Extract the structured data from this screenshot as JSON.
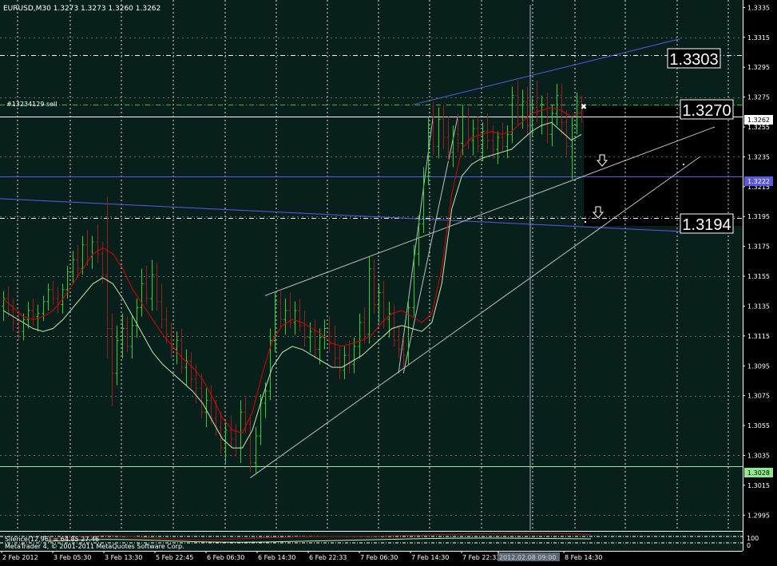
{
  "header": {
    "symbol_line": "EURUSD,M30  1.3273 1.3273 1.3260 1.3262"
  },
  "order_label": "#13234129 sell",
  "price_boxes": {
    "upper": "1.3303",
    "order": "1.3270",
    "lower": "1.3194"
  },
  "axis_tags": {
    "current": "1.3262",
    "blue_line": "1.3222",
    "green_line": "1.3028"
  },
  "indicator": {
    "label": "Silence(12,96) = 64.85 27.46",
    "copyright": "MetaTrader 4, © 2001-2011 MetaQuotes Software Corp.",
    "scale_top": "100",
    "scale_bottom": "0"
  },
  "time_cursor_label": "2012.02.08 09:00",
  "colors": {
    "background": "#000000",
    "plot_bg": "#08201c",
    "bull": "#33cc33",
    "bear": "#9a1d1d",
    "ma_fast": "#e00000",
    "ma_slow": "#c8e8b0",
    "blue_line": "#5a5ae0",
    "green_line": "#90e890",
    "grid": "#ffffff"
  },
  "chart_data": {
    "type": "candlestick",
    "symbol": "EURUSD",
    "timeframe": "M30",
    "ylim": [
      1.2985,
      1.334
    ],
    "y_ticks": [
      "1.3335",
      "1.3315",
      "1.3295",
      "1.3275",
      "1.3255",
      "1.3235",
      "1.3215",
      "1.3195",
      "1.3175",
      "1.3155",
      "1.3135",
      "1.3115",
      "1.3095",
      "1.3075",
      "1.3055",
      "1.3035",
      "1.3015",
      "1.2995"
    ],
    "x_ticks": [
      "2 Feb 2012",
      "3 Feb 05:30",
      "3 Feb 13:30",
      "5 Feb 22:45",
      "6 Feb 06:30",
      "6 Feb 14:30",
      "6 Feb 22:33",
      "7 Feb 06:30",
      "7 Feb 14:30",
      "7 Feb 22:33",
      "2012.02.08 09:00",
      "8 Feb 14:30"
    ],
    "horizontal_levels": [
      {
        "price": 1.3303,
        "style": "dash-dot",
        "color": "white"
      },
      {
        "price": 1.327,
        "style": "dash-dot",
        "color": "green",
        "label": "#13234129 sell"
      },
      {
        "price": 1.3262,
        "style": "solid",
        "color": "white"
      },
      {
        "price": 1.3222,
        "style": "solid",
        "color": "blue"
      },
      {
        "price": 1.3194,
        "style": "dash-dot",
        "color": "white"
      },
      {
        "price": 1.3028,
        "style": "solid",
        "color": "green"
      }
    ],
    "candles": [
      [
        1.3135,
        1.3145,
        1.3125,
        1.314
      ],
      [
        1.314,
        1.3148,
        1.3128,
        1.3132
      ],
      [
        1.3132,
        1.314,
        1.3118,
        1.3124
      ],
      [
        1.3124,
        1.3132,
        1.3112,
        1.3118
      ],
      [
        1.3118,
        1.313,
        1.3112,
        1.3126
      ],
      [
        1.3126,
        1.3138,
        1.312,
        1.3132
      ],
      [
        1.3132,
        1.314,
        1.3122,
        1.3128
      ],
      [
        1.3128,
        1.3136,
        1.3118,
        1.313
      ],
      [
        1.313,
        1.3142,
        1.3125,
        1.3138
      ],
      [
        1.3138,
        1.315,
        1.3132,
        1.3146
      ],
      [
        1.3146,
        1.3152,
        1.3136,
        1.314
      ],
      [
        1.314,
        1.3148,
        1.313,
        1.3136
      ],
      [
        1.3136,
        1.315,
        1.313,
        1.3146
      ],
      [
        1.3146,
        1.3162,
        1.314,
        1.3158
      ],
      [
        1.3158,
        1.3172,
        1.315,
        1.3166
      ],
      [
        1.3166,
        1.3176,
        1.3154,
        1.316
      ],
      [
        1.316,
        1.3182,
        1.3156,
        1.3176
      ],
      [
        1.3176,
        1.3186,
        1.3162,
        1.3168
      ],
      [
        1.3168,
        1.3182,
        1.316,
        1.3178
      ],
      [
        1.3178,
        1.319,
        1.3164,
        1.317
      ],
      [
        1.317,
        1.3178,
        1.315,
        1.3156
      ],
      [
        1.3156,
        1.3208,
        1.31,
        1.312
      ],
      [
        1.312,
        1.313,
        1.3068,
        1.309
      ],
      [
        1.309,
        1.3122,
        1.3082,
        1.3112
      ],
      [
        1.3112,
        1.313,
        1.31,
        1.312
      ],
      [
        1.312,
        1.3128,
        1.3104,
        1.3108
      ],
      [
        1.3108,
        1.3128,
        1.31,
        1.3122
      ],
      [
        1.3122,
        1.314,
        1.3114,
        1.3134
      ],
      [
        1.3134,
        1.316,
        1.3128,
        1.315
      ],
      [
        1.315,
        1.3162,
        1.3136,
        1.314
      ],
      [
        1.314,
        1.3166,
        1.3132,
        1.3156
      ],
      [
        1.3156,
        1.3164,
        1.3132,
        1.3138
      ],
      [
        1.3138,
        1.315,
        1.312,
        1.3126
      ],
      [
        1.3126,
        1.3134,
        1.311,
        1.3116
      ],
      [
        1.3116,
        1.3124,
        1.31,
        1.3106
      ],
      [
        1.3106,
        1.3118,
        1.3096,
        1.3112
      ],
      [
        1.3112,
        1.312,
        1.309,
        1.3094
      ],
      [
        1.3094,
        1.3106,
        1.3082,
        1.3098
      ],
      [
        1.3098,
        1.3104,
        1.308,
        1.3086
      ],
      [
        1.3086,
        1.3096,
        1.307,
        1.308
      ],
      [
        1.308,
        1.309,
        1.306,
        1.3064
      ],
      [
        1.3064,
        1.308,
        1.3054,
        1.3072
      ],
      [
        1.3072,
        1.3082,
        1.3056,
        1.306
      ],
      [
        1.306,
        1.3072,
        1.3048,
        1.3054
      ],
      [
        1.3054,
        1.3064,
        1.3036,
        1.304
      ],
      [
        1.304,
        1.3058,
        1.303,
        1.3052
      ],
      [
        1.3052,
        1.3062,
        1.304,
        1.3046
      ],
      [
        1.3046,
        1.3056,
        1.3034,
        1.304
      ],
      [
        1.304,
        1.3072,
        1.303,
        1.3064
      ],
      [
        1.3064,
        1.3074,
        1.305,
        1.3056
      ],
      [
        1.3056,
        1.3062,
        1.3024,
        1.303
      ],
      [
        1.303,
        1.3054,
        1.3022,
        1.3048
      ],
      [
        1.3048,
        1.3076,
        1.3042,
        1.307
      ],
      [
        1.307,
        1.3084,
        1.306,
        1.3078
      ],
      [
        1.3078,
        1.312,
        1.3072,
        1.3112
      ],
      [
        1.3112,
        1.3144,
        1.3104,
        1.3138
      ],
      [
        1.3138,
        1.3146,
        1.312,
        1.3126
      ],
      [
        1.3126,
        1.314,
        1.3116,
        1.3132
      ],
      [
        1.3132,
        1.3144,
        1.312,
        1.3124
      ],
      [
        1.3124,
        1.3138,
        1.3116,
        1.3132
      ],
      [
        1.3132,
        1.314,
        1.3118,
        1.3122
      ],
      [
        1.3122,
        1.3132,
        1.3108,
        1.3114
      ],
      [
        1.3114,
        1.3124,
        1.3104,
        1.3118
      ],
      [
        1.3118,
        1.3126,
        1.31,
        1.3106
      ],
      [
        1.3106,
        1.312,
        1.3096,
        1.3114
      ],
      [
        1.3114,
        1.3126,
        1.3106,
        1.312
      ],
      [
        1.312,
        1.3128,
        1.3104,
        1.311
      ],
      [
        1.311,
        1.3122,
        1.3094,
        1.31
      ],
      [
        1.31,
        1.3108,
        1.3086,
        1.3092
      ],
      [
        1.3092,
        1.3108,
        1.3086,
        1.3102
      ],
      [
        1.3102,
        1.3112,
        1.309,
        1.3096
      ],
      [
        1.3096,
        1.3114,
        1.309,
        1.3108
      ],
      [
        1.3108,
        1.313,
        1.31,
        1.3124
      ],
      [
        1.3124,
        1.3134,
        1.311,
        1.3116
      ],
      [
        1.3116,
        1.3168,
        1.311,
        1.316
      ],
      [
        1.316,
        1.3166,
        1.313,
        1.3136
      ],
      [
        1.3136,
        1.315,
        1.3124,
        1.3144
      ],
      [
        1.3144,
        1.3152,
        1.312,
        1.3126
      ],
      [
        1.3126,
        1.3138,
        1.3114,
        1.313
      ],
      [
        1.313,
        1.3136,
        1.3108,
        1.3112
      ],
      [
        1.3112,
        1.3122,
        1.31,
        1.3106
      ],
      [
        1.3106,
        1.3114,
        1.3094,
        1.3102
      ],
      [
        1.3102,
        1.314,
        1.3096,
        1.3134
      ],
      [
        1.3134,
        1.3176,
        1.3128,
        1.317
      ],
      [
        1.317,
        1.3196,
        1.3162,
        1.319
      ],
      [
        1.319,
        1.3228,
        1.3184,
        1.3222
      ],
      [
        1.3222,
        1.3262,
        1.3216,
        1.3256
      ],
      [
        1.3256,
        1.3272,
        1.3236,
        1.3242
      ],
      [
        1.3242,
        1.3268,
        1.3234,
        1.326
      ],
      [
        1.326,
        1.327,
        1.324,
        1.3248
      ],
      [
        1.3248,
        1.3262,
        1.3232,
        1.3238
      ],
      [
        1.3238,
        1.3256,
        1.3228,
        1.325
      ],
      [
        1.325,
        1.3264,
        1.3238,
        1.3244
      ],
      [
        1.3244,
        1.327,
        1.3236,
        1.3262
      ],
      [
        1.3262,
        1.3268,
        1.324,
        1.3246
      ],
      [
        1.3246,
        1.326,
        1.3236,
        1.3254
      ],
      [
        1.3254,
        1.3262,
        1.3238,
        1.3242
      ],
      [
        1.3242,
        1.3258,
        1.3232,
        1.3252
      ],
      [
        1.3252,
        1.3264,
        1.324,
        1.3246
      ],
      [
        1.3246,
        1.3256,
        1.3234,
        1.324
      ],
      [
        1.324,
        1.3252,
        1.323,
        1.3248
      ],
      [
        1.3248,
        1.3258,
        1.3238,
        1.3242
      ],
      [
        1.3242,
        1.3256,
        1.3234,
        1.325
      ],
      [
        1.325,
        1.3282,
        1.3244,
        1.3276
      ],
      [
        1.3276,
        1.3286,
        1.3256,
        1.3262
      ],
      [
        1.3262,
        1.328,
        1.3254,
        1.3272
      ],
      [
        1.3272,
        1.3282,
        1.325,
        1.3256
      ],
      [
        1.3256,
        1.3274,
        1.3248,
        1.3268
      ],
      [
        1.3268,
        1.3286,
        1.3258,
        1.3262
      ],
      [
        1.3262,
        1.3276,
        1.325,
        1.327
      ],
      [
        1.327,
        1.3278,
        1.3244,
        1.325
      ],
      [
        1.325,
        1.327,
        1.3242,
        1.3264
      ],
      [
        1.3264,
        1.3284,
        1.3256,
        1.3276
      ],
      [
        1.3276,
        1.3284,
        1.325,
        1.3258
      ],
      [
        1.3258,
        1.3266,
        1.3236,
        1.3242
      ],
      [
        1.3242,
        1.3262,
        1.322,
        1.3256
      ],
      [
        1.3256,
        1.3278,
        1.325,
        1.3272
      ],
      [
        1.3272,
        1.3276,
        1.3258,
        1.3262
      ]
    ],
    "ma_fast": [
      1.314,
      1.3134,
      1.3128,
      1.3126,
      1.3128,
      1.3132,
      1.314,
      1.315,
      1.316,
      1.317,
      1.3174,
      1.317,
      1.316,
      1.3146,
      1.3136,
      1.3126,
      1.3116,
      1.3108,
      1.31,
      1.3094,
      1.3086,
      1.3074,
      1.306,
      1.3052,
      1.305,
      1.3064,
      1.309,
      1.3112,
      1.3122,
      1.3126,
      1.3124,
      1.312,
      1.3116,
      1.311,
      1.3108,
      1.311,
      1.3112,
      1.3116,
      1.3124,
      1.313,
      1.3132,
      1.3128,
      1.3124,
      1.313,
      1.316,
      1.321,
      1.324,
      1.3248,
      1.325,
      1.3252,
      1.325,
      1.3252,
      1.3258,
      1.3264,
      1.3266,
      1.3268,
      1.3266,
      1.3262,
      1.3265
    ],
    "ma_slow": [
      1.3132,
      1.3128,
      1.3124,
      1.312,
      1.3118,
      1.312,
      1.3126,
      1.3134,
      1.3142,
      1.315,
      1.3154,
      1.315,
      1.314,
      1.3128,
      1.3116,
      1.3104,
      1.3096,
      1.309,
      1.3084,
      1.3078,
      1.307,
      1.3058,
      1.3046,
      1.304,
      1.304,
      1.3052,
      1.3074,
      1.3094,
      1.3104,
      1.3108,
      1.3106,
      1.3102,
      1.3098,
      1.3094,
      1.3094,
      1.3098,
      1.3102,
      1.3108,
      1.3114,
      1.312,
      1.3122,
      1.312,
      1.3118,
      1.3124,
      1.315,
      1.32,
      1.3222,
      1.323,
      1.3234,
      1.3236,
      1.3238,
      1.324,
      1.3246,
      1.3252,
      1.3256,
      1.3258,
      1.3252,
      1.3246,
      1.325
    ]
  }
}
